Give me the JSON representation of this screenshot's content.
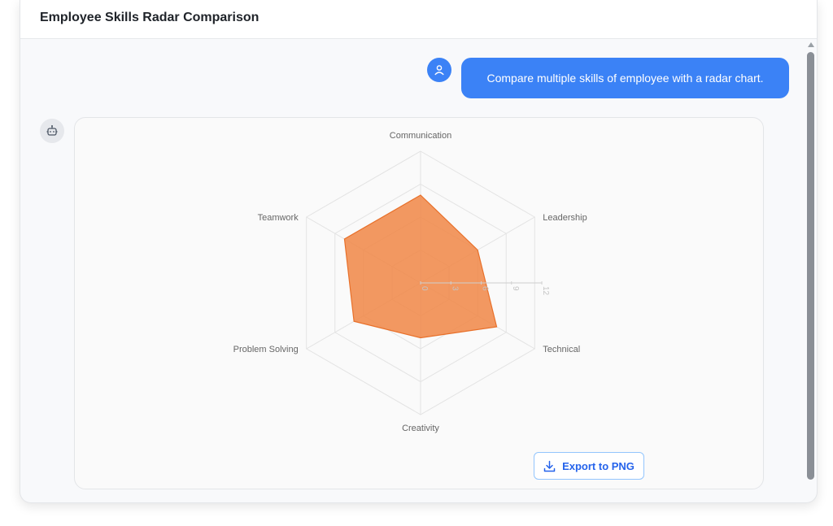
{
  "header": {
    "title": "Employee Skills Radar Comparison"
  },
  "user_message": {
    "text": "Compare multiple skills of employee with a radar chart."
  },
  "icons": {
    "user_avatar": "user-icon",
    "bot_avatar": "robot-icon",
    "export": "download-icon"
  },
  "colors": {
    "user_bubble": "#3b82f6",
    "series_fill": "#f08a4b",
    "series_stroke": "#e8702a",
    "export_text": "#2563eb"
  },
  "export_button": {
    "label": "Export to PNG"
  },
  "chart_data": {
    "type": "radar",
    "title": "",
    "axes": [
      "Communication",
      "Leadership",
      "Technical",
      "Creativity",
      "Problem Solving",
      "Teamwork"
    ],
    "series": [
      {
        "values": [
          8,
          6,
          8,
          5,
          7,
          8
        ]
      }
    ],
    "rmax": 12,
    "ticks": [
      0,
      3,
      6,
      9,
      12
    ],
    "grid": true,
    "legend": "none"
  }
}
